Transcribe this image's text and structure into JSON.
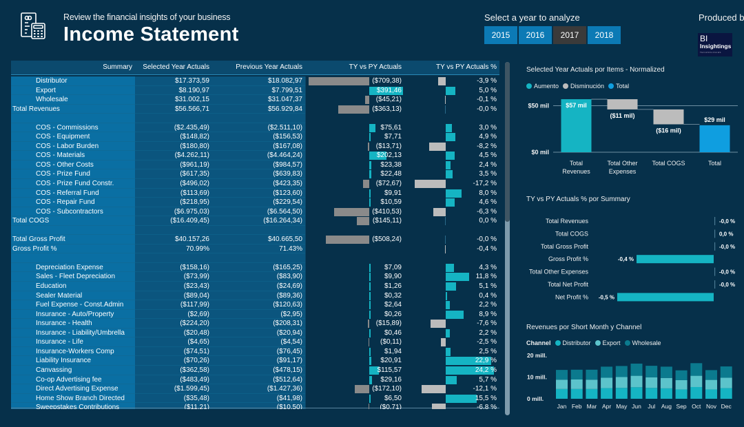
{
  "header": {
    "subtitle": "Review the financial insights of your business",
    "title": "Income Statement",
    "icon": "financial-document-calculator-icon"
  },
  "year_selector": {
    "label": "Select a year to analyze",
    "years": [
      "2015",
      "2016",
      "2017",
      "2018"
    ],
    "selected": "2017"
  },
  "branding": {
    "produced_by": "Produced by",
    "logo_line1": "BI",
    "logo_line2": "Insightings",
    "logo_line3": "TECHNOLOGIES"
  },
  "colors": {
    "background": "#06304a",
    "increase": "#15b4c3",
    "decrease": "#bcbcbc",
    "total": "#0f9ee0",
    "year_button": "#0c7ab5",
    "year_button_active": "#3a3a3a"
  },
  "matrix": {
    "headers": [
      "Summary",
      "Selected Year Actuals",
      "Previous Year Actuals",
      "TY vs PY Actuals",
      "TY vs PY Actuals %"
    ],
    "rows": [
      {
        "label": "Distributor",
        "total": false,
        "sel": "$17.373,59",
        "prev": "$18.082,97",
        "ty": "($709,38)",
        "ty_val": -709.38,
        "pct": "-3,9 %",
        "pct_val": -3.9
      },
      {
        "label": "Export",
        "total": false,
        "sel": "$8.190,97",
        "prev": "$7.799,51",
        "ty": "$391,46",
        "ty_val": 391.46,
        "pct": "5,0 %",
        "pct_val": 5.0
      },
      {
        "label": "Wholesale",
        "total": false,
        "sel": "$31.002,15",
        "prev": "$31.047,37",
        "ty": "($45,21)",
        "ty_val": -45.21,
        "pct": "-0,1 %",
        "pct_val": -0.1
      },
      {
        "label": "Total Revenues",
        "total": true,
        "sel": "$56.566,71",
        "prev": "$56.929,84",
        "ty": "($363,13)",
        "ty_val": -363.13,
        "pct": "-0,0 %",
        "pct_val": 0
      },
      {
        "label": "",
        "total": false,
        "sel": "",
        "prev": "",
        "ty": "",
        "ty_val": 0,
        "pct": "",
        "pct_val": 0
      },
      {
        "label": "COS - Commissions",
        "total": false,
        "sel": "($2.435,49)",
        "prev": "($2.511,10)",
        "ty": "$75,61",
        "ty_val": 75.61,
        "pct": "3,0 %",
        "pct_val": 3.0
      },
      {
        "label": "COS - Equipment",
        "total": false,
        "sel": "($148,82)",
        "prev": "($156,53)",
        "ty": "$7,71",
        "ty_val": 7.71,
        "pct": "4,9 %",
        "pct_val": 4.9
      },
      {
        "label": "COS - Labor Burden",
        "total": false,
        "sel": "($180,80)",
        "prev": "($167,08)",
        "ty": "($13,71)",
        "ty_val": -13.71,
        "pct": "-8,2 %",
        "pct_val": -8.2
      },
      {
        "label": "COS - Materials",
        "total": false,
        "sel": "($4.262,11)",
        "prev": "($4.464,24)",
        "ty": "$202,13",
        "ty_val": 202.13,
        "pct": "4,5 %",
        "pct_val": 4.5
      },
      {
        "label": "COS - Other Costs",
        "total": false,
        "sel": "($961,19)",
        "prev": "($984,57)",
        "ty": "$23,38",
        "ty_val": 23.38,
        "pct": "2,4 %",
        "pct_val": 2.4
      },
      {
        "label": "COS - Prize Fund",
        "total": false,
        "sel": "($617,35)",
        "prev": "($639,83)",
        "ty": "$22,48",
        "ty_val": 22.48,
        "pct": "3,5 %",
        "pct_val": 3.5
      },
      {
        "label": "COS - Prize Fund Constr.",
        "total": false,
        "sel": "($496,02)",
        "prev": "($423,35)",
        "ty": "($72,67)",
        "ty_val": -72.67,
        "pct": "-17,2 %",
        "pct_val": -17.2
      },
      {
        "label": "COS - Referral Fund",
        "total": false,
        "sel": "($113,69)",
        "prev": "($123,60)",
        "ty": "$9,91",
        "ty_val": 9.91,
        "pct": "8,0 %",
        "pct_val": 8.0
      },
      {
        "label": "COS - Repair Fund",
        "total": false,
        "sel": "($218,95)",
        "prev": "($229,54)",
        "ty": "$10,59",
        "ty_val": 10.59,
        "pct": "4,6 %",
        "pct_val": 4.6
      },
      {
        "label": "COS - Subcontractors",
        "total": false,
        "sel": "($6.975,03)",
        "prev": "($6.564,50)",
        "ty": "($410,53)",
        "ty_val": -410.53,
        "pct": "-6,3 %",
        "pct_val": -6.3
      },
      {
        "label": "Total COGS",
        "total": true,
        "sel": "($16.409,45)",
        "prev": "($16.264,34)",
        "ty": "($145,11)",
        "ty_val": -145.11,
        "pct": "0,0 %",
        "pct_val": 0
      },
      {
        "label": "",
        "total": false,
        "sel": "",
        "prev": "",
        "ty": "",
        "ty_val": 0,
        "pct": "",
        "pct_val": 0
      },
      {
        "label": "Total Gross Profit",
        "total": true,
        "sel": "$40.157,26",
        "prev": "$40.665,50",
        "ty": "($508,24)",
        "ty_val": -508.24,
        "pct": "-0,0 %",
        "pct_val": 0
      },
      {
        "label": "Gross Profit %",
        "total": true,
        "sel": "70.99%",
        "prev": "71.43%",
        "ty": "",
        "ty_val": 0,
        "pct": "-0,4 %",
        "pct_val": -0.05
      },
      {
        "label": "",
        "total": false,
        "sel": "",
        "prev": "",
        "ty": "",
        "ty_val": 0,
        "pct": "",
        "pct_val": 0
      },
      {
        "label": "Depreciation Expense",
        "total": false,
        "sel": "($158,16)",
        "prev": "($165,25)",
        "ty": "$7,09",
        "ty_val": 7.09,
        "pct": "4,3 %",
        "pct_val": 4.3
      },
      {
        "label": "Sales - Fleet Depreciation",
        "total": false,
        "sel": "($73,99)",
        "prev": "($83,90)",
        "ty": "$9,90",
        "ty_val": 9.9,
        "pct": "11,8 %",
        "pct_val": 11.8
      },
      {
        "label": "Education",
        "total": false,
        "sel": "($23,43)",
        "prev": "($24,69)",
        "ty": "$1,26",
        "ty_val": 1.26,
        "pct": "5,1 %",
        "pct_val": 5.1
      },
      {
        "label": "Sealer Material",
        "total": false,
        "sel": "($89,04)",
        "prev": "($89,36)",
        "ty": "$0,32",
        "ty_val": 0.32,
        "pct": "0,4 %",
        "pct_val": 0.4
      },
      {
        "label": "Fuel Expense - Const.Admin",
        "total": false,
        "sel": "($117,99)",
        "prev": "($120,63)",
        "ty": "$2,64",
        "ty_val": 2.64,
        "pct": "2,2 %",
        "pct_val": 2.2
      },
      {
        "label": "Insurance - Auto/Property",
        "total": false,
        "sel": "($2,69)",
        "prev": "($2,95)",
        "ty": "$0,26",
        "ty_val": 0.26,
        "pct": "8,9 %",
        "pct_val": 8.9
      },
      {
        "label": "Insurance - Health",
        "total": false,
        "sel": "($224,20)",
        "prev": "($208,31)",
        "ty": "($15,89)",
        "ty_val": -15.89,
        "pct": "-7,6 %",
        "pct_val": -7.6
      },
      {
        "label": "Insurance - Liability/Umbrella",
        "total": false,
        "sel": "($20,48)",
        "prev": "($20,94)",
        "ty": "$0,46",
        "ty_val": 0.46,
        "pct": "2,2 %",
        "pct_val": 2.2
      },
      {
        "label": "Insurance - Life",
        "total": false,
        "sel": "($4,65)",
        "prev": "($4,54)",
        "ty": "($0,11)",
        "ty_val": -0.11,
        "pct": "-2,5 %",
        "pct_val": -2.5
      },
      {
        "label": "Insurance-Workers Comp",
        "total": false,
        "sel": "($74,51)",
        "prev": "($76,45)",
        "ty": "$1,94",
        "ty_val": 1.94,
        "pct": "2,5 %",
        "pct_val": 2.5
      },
      {
        "label": "Liability Insurance",
        "total": false,
        "sel": "($70,26)",
        "prev": "($91,17)",
        "ty": "$20,91",
        "ty_val": 20.91,
        "pct": "22,9 %",
        "pct_val": 22.9
      },
      {
        "label": "Canvassing",
        "total": false,
        "sel": "($362,58)",
        "prev": "($478,15)",
        "ty": "$115,57",
        "ty_val": 115.57,
        "pct": "24,2 %",
        "pct_val": 24.2
      },
      {
        "label": "Co-op Advertising fee",
        "total": false,
        "sel": "($483,49)",
        "prev": "($512,64)",
        "ty": "$29,16",
        "ty_val": 29.16,
        "pct": "5,7 %",
        "pct_val": 5.7
      },
      {
        "label": "Direct Advertising Expense",
        "total": false,
        "sel": "($1.599,45)",
        "prev": "($1.427,36)",
        "ty": "($172,10)",
        "ty_val": -172.1,
        "pct": "-12,1 %",
        "pct_val": -12.1
      },
      {
        "label": "Home Show Branch Directed",
        "total": false,
        "sel": "($35,48)",
        "prev": "($41,98)",
        "ty": "$6,50",
        "ty_val": 6.5,
        "pct": "15,5 %",
        "pct_val": 15.5
      },
      {
        "label": "Sweepstakes Contributions",
        "total": false,
        "sel": "($11,21)",
        "prev": "($10,50)",
        "ty": "($0,71)",
        "ty_val": -0.71,
        "pct": "-6,8 %",
        "pct_val": -6.8
      }
    ]
  },
  "chart_data": [
    {
      "type": "bar",
      "subtype": "waterfall",
      "title": "Selected Year Actuals por Items - Normalized",
      "legend": [
        "Aumento",
        "Disminución",
        "Total"
      ],
      "legend_position": "top-left",
      "categories": [
        "Total Revenues",
        "Total Other Expenses",
        "Total COGS",
        "Total"
      ],
      "values": [
        57,
        -11,
        -16,
        29
      ],
      "kinds": [
        "increase",
        "decrease",
        "decrease",
        "total"
      ],
      "data_labels": [
        "$57 mil",
        "($11 mil)",
        "($16 mil)",
        "$29 mil"
      ],
      "ylabel": "",
      "yticks": [
        "$0 mil",
        "$50 mil"
      ],
      "ytick_values": [
        0,
        50
      ],
      "ylim": [
        0,
        60
      ],
      "grid": true
    },
    {
      "type": "bar",
      "orientation": "horizontal",
      "title": "TY vs PY Actuals % por Summary",
      "categories": [
        "Total Revenues",
        "Total COGS",
        "Total Gross Profit",
        "Gross Profit %",
        "Total Other Expenses",
        "Total Net Profit",
        "Net Profit %"
      ],
      "values": [
        -0.0,
        0.0,
        -0.0,
        -0.4,
        -0.0,
        -0.0,
        -0.5
      ],
      "data_labels": [
        "-0,0 %",
        "0,0 %",
        "-0,0 %",
        "-0,4 %",
        "-0,0 %",
        "-0,0 %",
        "-0,5 %"
      ],
      "xlim": [
        -0.5,
        0.0
      ],
      "grid": false
    },
    {
      "type": "bar",
      "subtype": "stacked",
      "title": "Revenues por Short Month y Channel",
      "legend_title": "Channel",
      "legend": [
        "Distributor",
        "Export",
        "Wholesale"
      ],
      "legend_position": "top-left",
      "categories": [
        "Jan",
        "Feb",
        "Mar",
        "Apr",
        "May",
        "Jun",
        "Jul",
        "Aug",
        "Sep",
        "Oct",
        "Nov",
        "Dec"
      ],
      "series": [
        {
          "name": "Distributor",
          "color": "#15b4c3",
          "values": [
            4.5,
            4.5,
            4.5,
            4.9,
            5.0,
            5.3,
            5.0,
            4.8,
            4.3,
            5.4,
            4.3,
            4.9
          ]
        },
        {
          "name": "Export",
          "color": "#5cc3cb",
          "values": [
            4.3,
            4.4,
            4.3,
            4.8,
            5.0,
            5.3,
            4.9,
            4.8,
            4.3,
            5.2,
            4.4,
            4.8
          ]
        },
        {
          "name": "Wholesale",
          "color": "#0b7a8e",
          "values": [
            4.5,
            4.5,
            4.6,
            5.1,
            5.1,
            5.6,
            5.3,
            5.2,
            4.5,
            5.8,
            4.5,
            5.2
          ]
        }
      ],
      "yticks": [
        "0 mill.",
        "10 mill.",
        "20 mill."
      ],
      "ytick_values": [
        0,
        10,
        20
      ],
      "ylim": [
        0,
        20
      ],
      "grid": false
    }
  ]
}
